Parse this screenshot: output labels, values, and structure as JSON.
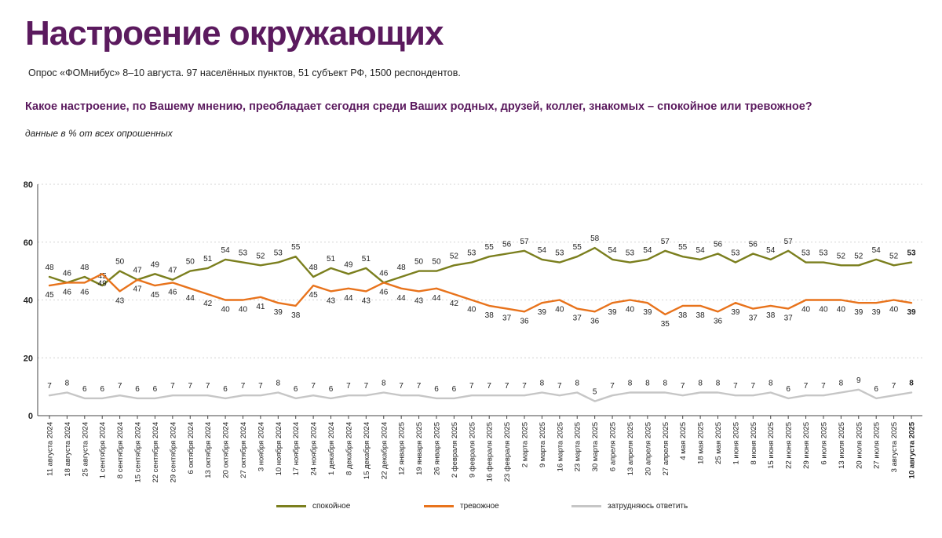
{
  "title": "Настроение окружающих",
  "subtitle": "Опрос «ФОМнибус» 8–10 августа. 97 населённых пунктов, 51 субъект РФ, 1500 респондентов.",
  "question": "Какое настроение, по Вашему мнению, преобладает сегодня среди Ваших родных, друзей, коллег, знакомых – спокойное или тревожное?",
  "note": "данные в % от всех опрошенных",
  "legend": {
    "calm": "спокойное",
    "anxious": "тревожное",
    "unsure": "затрудняюсь ответить"
  },
  "colors": {
    "calm": "#7b7f1e",
    "anxious": "#e8731c",
    "unsure": "#c6c6c6",
    "title": "#5b1a5e"
  },
  "chart_data": {
    "type": "line",
    "ylim": [
      0,
      80
    ],
    "yticks": [
      0,
      20,
      40,
      60,
      80
    ],
    "grid": true,
    "legend_position": "bottom",
    "categories": [
      "11 августа 2024",
      "18 августа 2024",
      "25 августа 2024",
      "1 сентября 2024",
      "8 сентября 2024",
      "15 сентября 2024",
      "22 сентября 2024",
      "29 сентября 2024",
      "6 октября 2024",
      "13 октября 2024",
      "20 октября 2024",
      "27 октября 2024",
      "3 ноября 2024",
      "10 ноября 2024",
      "17 ноября 2024",
      "24 ноября 2024",
      "1 декабря 2024",
      "8 декабря 2024",
      "15 декабря 2024",
      "22 декабря 2024",
      "12 января 2025",
      "19 января 2025",
      "26 января 2025",
      "2 февраля 2025",
      "9 февраля 2025",
      "16 февраля 2025",
      "23 февраля 2025",
      "2 марта 2025",
      "9 марта 2025",
      "16 марта 2025",
      "23 марта 2025",
      "30 марта 2025",
      "6 апреля 2025",
      "13 апреля 2025",
      "20 апреля 2025",
      "27 апреля 2025",
      "4 мая 2025",
      "18 мая 2025",
      "25 мая 2025",
      "1 июня 2025",
      "8 июня 2025",
      "15 июня 2025",
      "22 июня 2025",
      "29 июня 2025",
      "6 июля 2025",
      "13 июля 2025",
      "20 июля 2025",
      "27 июля 2025",
      "3 августа 2025",
      "10 августа 2025"
    ],
    "series": [
      {
        "name": "спокойное",
        "key": "calm",
        "values": [
          48,
          46,
          48,
          45,
          50,
          47,
          49,
          47,
          50,
          51,
          54,
          53,
          52,
          53,
          55,
          48,
          51,
          49,
          51,
          46,
          48,
          50,
          50,
          52,
          53,
          55,
          56,
          57,
          54,
          53,
          55,
          58,
          54,
          53,
          54,
          57,
          55,
          54,
          56,
          53,
          56,
          54,
          57,
          53,
          53,
          52,
          52,
          54,
          52,
          53
        ]
      },
      {
        "name": "тревожное",
        "key": "anxious",
        "values": [
          45,
          46,
          46,
          49,
          43,
          47,
          45,
          46,
          44,
          42,
          40,
          40,
          41,
          39,
          38,
          45,
          43,
          44,
          43,
          46,
          44,
          43,
          44,
          42,
          40,
          38,
          37,
          36,
          39,
          40,
          37,
          36,
          39,
          40,
          39,
          35,
          38,
          38,
          36,
          39,
          37,
          38,
          37,
          40,
          40,
          40,
          39,
          39,
          40,
          39
        ]
      },
      {
        "name": "затрудняюсь ответить",
        "key": "unsure",
        "values": [
          7,
          8,
          6,
          6,
          7,
          6,
          6,
          7,
          7,
          7,
          6,
          7,
          7,
          8,
          6,
          7,
          6,
          7,
          7,
          8,
          7,
          7,
          6,
          6,
          7,
          7,
          7,
          7,
          8,
          7,
          8,
          5,
          7,
          8,
          8,
          8,
          7,
          8,
          8,
          7,
          7,
          8,
          6,
          7,
          7,
          8,
          9,
          6,
          7,
          8
        ]
      }
    ]
  }
}
